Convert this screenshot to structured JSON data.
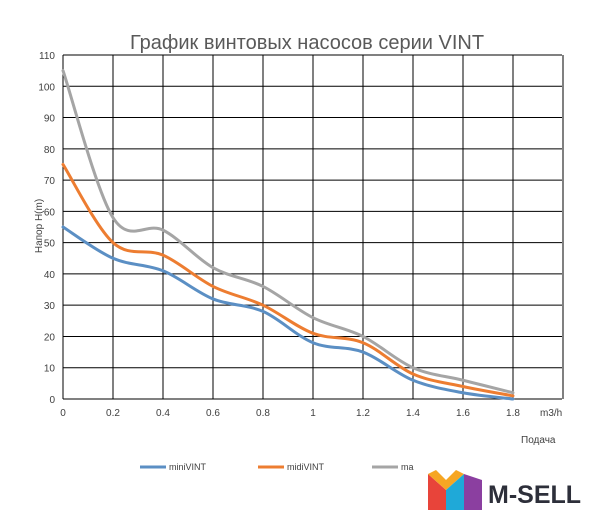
{
  "chart_data": {
    "type": "line",
    "title": "График винтовых насосов серии VINT",
    "xlabel": "Подача",
    "x_unit": "m3/h",
    "ylabel": "Напор  H(m)",
    "xlim": [
      0,
      1.8
    ],
    "ylim": [
      0,
      110
    ],
    "x_ticks": [
      "0",
      "0.2",
      "0.4",
      "0.6",
      "0.8",
      "1",
      "1.2",
      "1.4",
      "1.6",
      "1.8"
    ],
    "y_ticks": [
      "0",
      "10",
      "20",
      "30",
      "40",
      "50",
      "60",
      "70",
      "80",
      "90",
      "100",
      "110"
    ],
    "grid": true,
    "legend_position": "bottom",
    "series": [
      {
        "name": "miniVINT",
        "color": "#5b8fc4",
        "points": [
          [
            0,
            55
          ],
          [
            0.2,
            45
          ],
          [
            0.4,
            41
          ],
          [
            0.6,
            32
          ],
          [
            0.8,
            28
          ],
          [
            1.0,
            18
          ],
          [
            1.2,
            15
          ],
          [
            1.4,
            6
          ],
          [
            1.6,
            2
          ],
          [
            1.8,
            0
          ]
        ]
      },
      {
        "name": "midiVINT",
        "color": "#ed7d31",
        "points": [
          [
            0,
            75
          ],
          [
            0.2,
            50
          ],
          [
            0.4,
            46
          ],
          [
            0.6,
            36
          ],
          [
            0.8,
            30
          ],
          [
            1.0,
            21
          ],
          [
            1.2,
            18
          ],
          [
            1.4,
            8
          ],
          [
            1.6,
            4
          ],
          [
            1.8,
            1
          ]
        ]
      },
      {
        "name": "ma",
        "color": "#a5a5a5",
        "points": [
          [
            0,
            105
          ],
          [
            0.2,
            58
          ],
          [
            0.4,
            54
          ],
          [
            0.6,
            42
          ],
          [
            0.8,
            36
          ],
          [
            1.0,
            26
          ],
          [
            1.2,
            20
          ],
          [
            1.4,
            10
          ],
          [
            1.6,
            6
          ],
          [
            1.8,
            2
          ]
        ]
      }
    ]
  },
  "brand": {
    "name": "M-SELL",
    "logo_colors": [
      "#e8443a",
      "#f6a623",
      "#1fa9d8",
      "#8b3fa0"
    ]
  }
}
